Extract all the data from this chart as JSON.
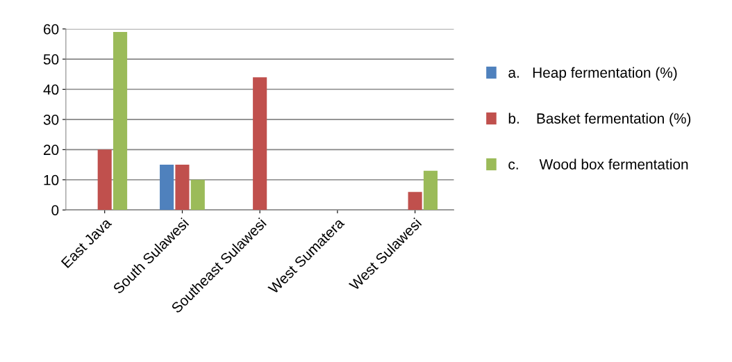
{
  "chart_data": {
    "type": "bar",
    "categories": [
      "East Java",
      "South Sulawesi",
      "Southeast Sulawesi",
      "West Sumatera",
      "West Sulawesi"
    ],
    "series": [
      {
        "name": "a.   Heap fermentation (%)",
        "color": "#4f81bd",
        "values": [
          0,
          15,
          0,
          0,
          0
        ]
      },
      {
        "name": "b.    Basket fermentation (%)",
        "color": "#c0504d",
        "values": [
          20,
          15,
          44,
          0,
          6
        ]
      },
      {
        "name": "c.     Wood box fermentation",
        "color": "#9bbb59",
        "values": [
          59,
          10,
          0,
          0,
          13
        ]
      }
    ],
    "ylim": [
      0,
      60
    ],
    "yticks": [
      0,
      10,
      20,
      30,
      40,
      50,
      60
    ],
    "grid": "y",
    "legend": "right"
  }
}
